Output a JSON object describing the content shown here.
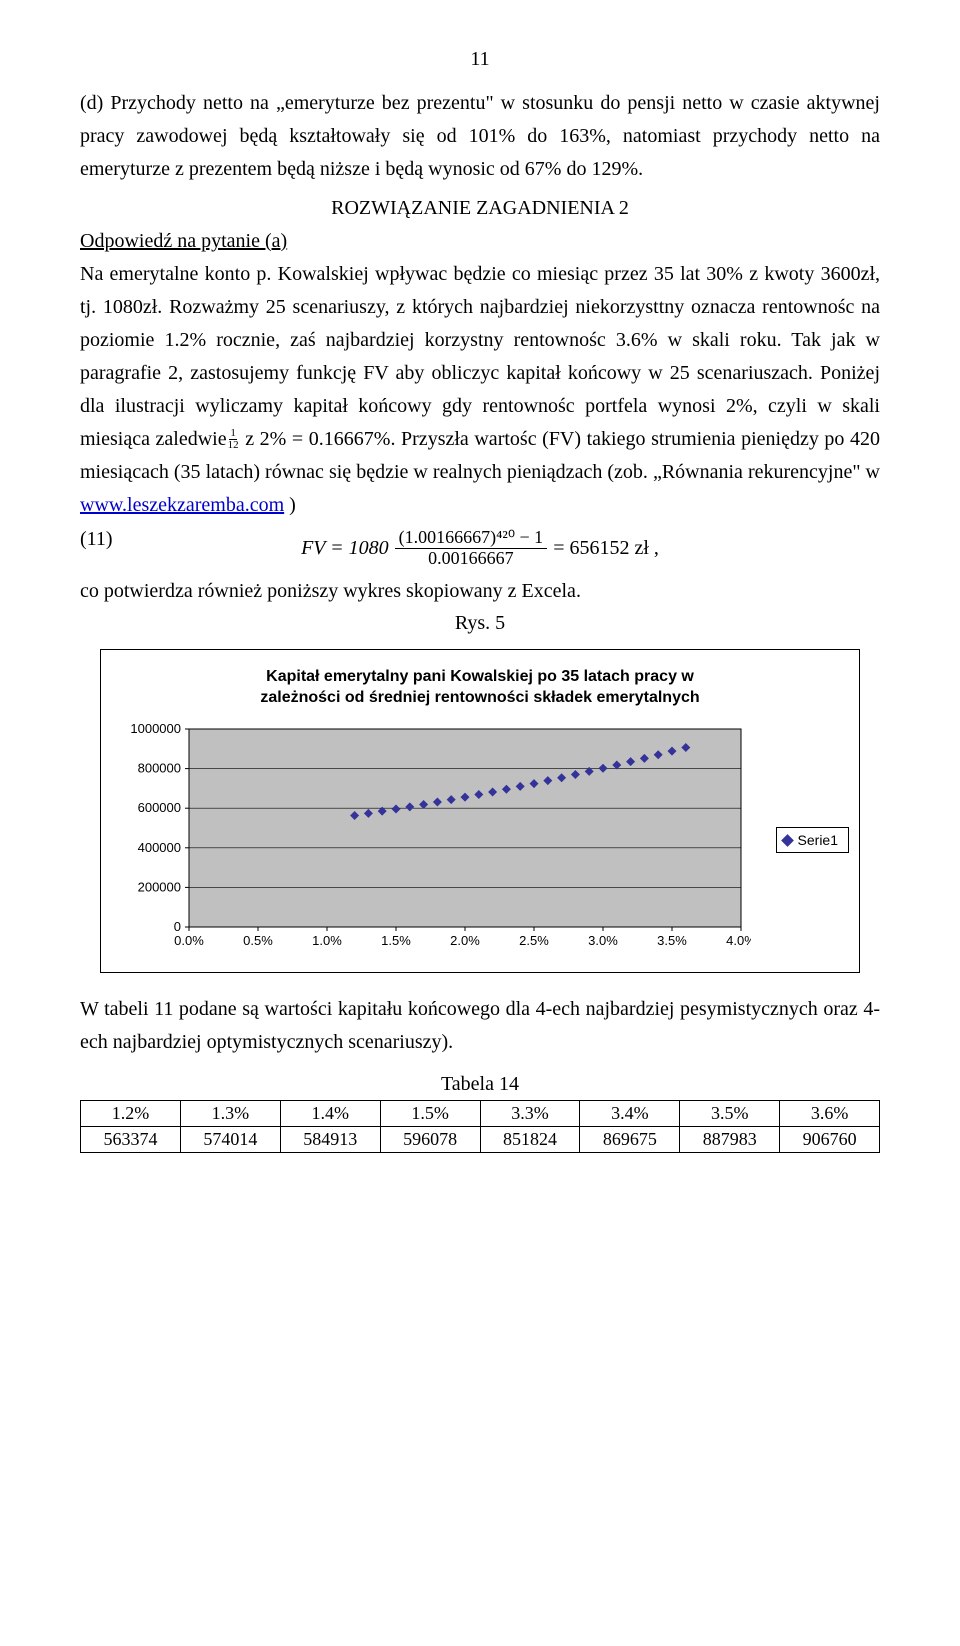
{
  "page_number": "11",
  "para1": "(d) Przychody netto na „emeryturze bez prezentu\" w stosunku do pensji netto w czasie aktywnej pracy zawodowej będą kształtowały się od 101% do 163%, natomiast przychody netto na emeryturze z prezentem będą niższe i będą wynosic od 67% do 129%.",
  "heading": "ROZWIĄZANIE  ZAGADNIENIA 2",
  "answer_a": "Odpowiedź na pytanie (a)",
  "para2a": "Na emerytalne konto p. Kowalskiej wpływac będzie co miesiąc przez 35 lat 30% z kwoty 3600zł, tj. 1080zł. Rozważmy 25 scenariuszy, z których najbardziej niekorzysttny oznacza rentownośc na poziomie 1.2% rocznie, zaś najbardziej korzystny rentownośc 3.6% w skali roku. Tak jak w paragrafie 2, zastosujemy funkcję FV aby obliczyc kapitał końcowy w 25 scenariuszach. Poniżej dla ilustracji wyliczamy kapitał końcowy gdy rentownośc portfela wynosi 2%, czyli w skali miesiąca zaledwie",
  "para2b": " z 2% = 0.16667%. Przyszła wartośc (FV) takiego strumienia pieniędzy po 420 miesiącach (35 latach) równac się będzie w realnych pieniądzach (zob. „Równania rekurencyjne\" w ",
  "link_text": "www.leszekzaremba.com",
  "para2c": " )",
  "eq_label": "(11)",
  "eq_lhs": "FV = 1080",
  "eq_num": "(1.00166667)⁴²⁰ − 1",
  "eq_den": "0.00166667",
  "eq_rhs": "= 656152 zł ,",
  "para3": "co potwierdza również poniższy wykres skopiowany z Excela.",
  "rys_label": "Rys. 5",
  "chart": {
    "title_line1": "Kapitał emerytalny pani Kowalskiej po 35 latach pracy w",
    "title_line2": "zależności od średniej rentowności składek emerytalnych",
    "legend_label": "Serie1",
    "plot_bg": "#c0c0c0",
    "grid_color": "#000000",
    "marker_color": "#333399",
    "axis_font_size": 13,
    "x_min": 0.0,
    "x_max": 4.0,
    "y_min": 0,
    "y_max": 1000000,
    "y_ticks": [
      0,
      200000,
      400000,
      600000,
      800000,
      1000000
    ],
    "x_ticks": [
      "0.0%",
      "0.5%",
      "1.0%",
      "1.5%",
      "2.0%",
      "2.5%",
      "3.0%",
      "3.5%",
      "4.0%"
    ],
    "points": [
      {
        "x": 1.2,
        "y": 563374
      },
      {
        "x": 1.3,
        "y": 574014
      },
      {
        "x": 1.4,
        "y": 584913
      },
      {
        "x": 1.5,
        "y": 596078
      },
      {
        "x": 1.6,
        "y": 607000
      },
      {
        "x": 1.7,
        "y": 619000
      },
      {
        "x": 1.8,
        "y": 631000
      },
      {
        "x": 1.9,
        "y": 643000
      },
      {
        "x": 2.0,
        "y": 656152
      },
      {
        "x": 2.1,
        "y": 669000
      },
      {
        "x": 2.2,
        "y": 682000
      },
      {
        "x": 2.3,
        "y": 696000
      },
      {
        "x": 2.4,
        "y": 710000
      },
      {
        "x": 2.5,
        "y": 724000
      },
      {
        "x": 2.6,
        "y": 739000
      },
      {
        "x": 2.7,
        "y": 754000
      },
      {
        "x": 2.8,
        "y": 770000
      },
      {
        "x": 2.9,
        "y": 786000
      },
      {
        "x": 3.0,
        "y": 802000
      },
      {
        "x": 3.1,
        "y": 818000
      },
      {
        "x": 3.2,
        "y": 835000
      },
      {
        "x": 3.3,
        "y": 851824
      },
      {
        "x": 3.4,
        "y": 869675
      },
      {
        "x": 3.5,
        "y": 887983
      },
      {
        "x": 3.6,
        "y": 906760
      }
    ]
  },
  "para4": "W tabeli 11 podane są wartości kapitału końcowego dla 4-ech najbardziej pesymistycznych oraz  4-ech najbardziej optymistycznych scenariuszy).",
  "table_label": "Tabela 14",
  "table": {
    "headers": [
      "1.2%",
      "1.3%",
      "1.4%",
      "1.5%",
      "3.3%",
      "3.4%",
      "3.5%",
      "3.6%"
    ],
    "row": [
      "563374",
      "574014",
      "584913",
      "596078",
      "851824",
      "869675",
      "887983",
      "906760"
    ]
  }
}
